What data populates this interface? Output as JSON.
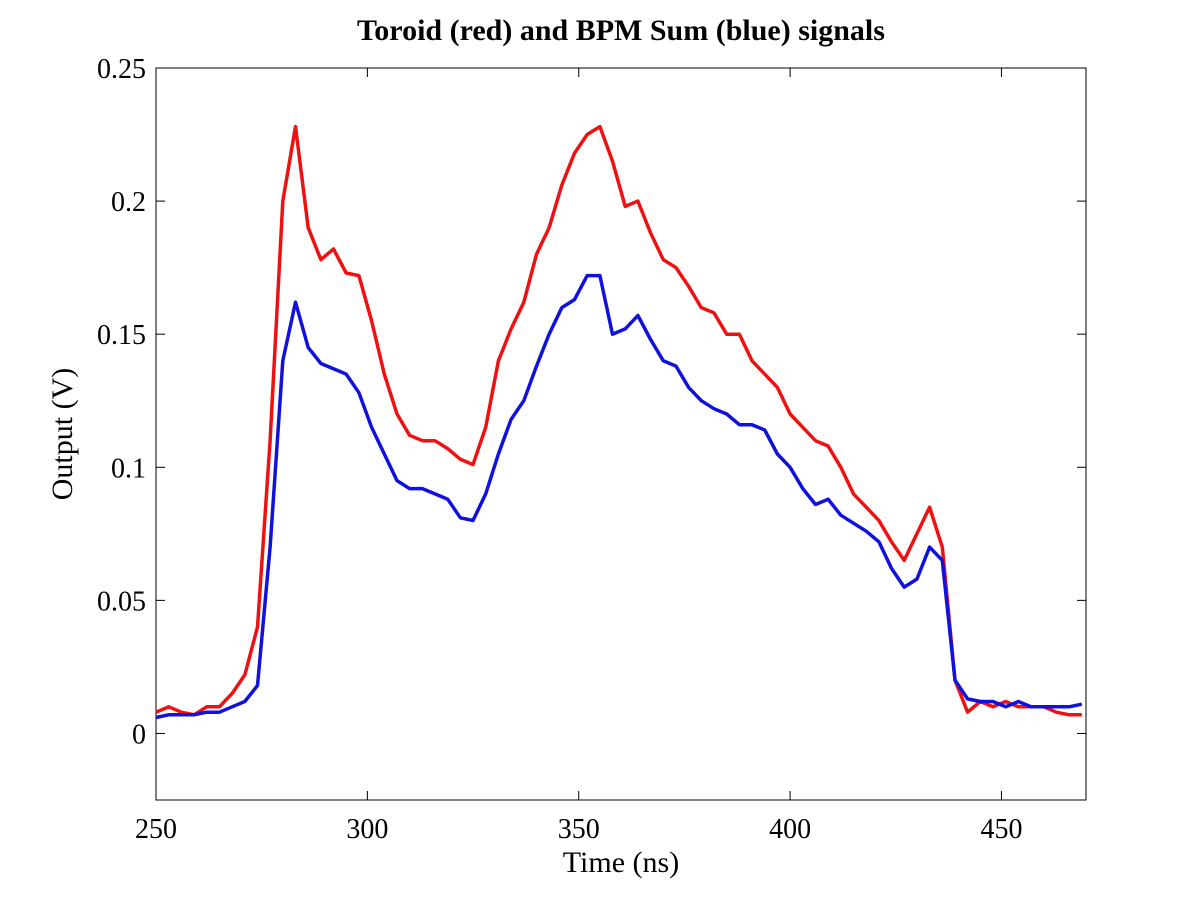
{
  "chart_data": {
    "type": "line",
    "title": "Toroid (red) and BPM Sum (blue) signals",
    "x_label": "Time (ns)",
    "y_label": "Output (V)",
    "x": [
      250,
      253,
      256,
      259,
      262,
      265,
      268,
      271,
      274,
      277,
      280,
      283,
      286,
      289,
      292,
      295,
      298,
      301,
      304,
      307,
      310,
      313,
      316,
      319,
      322,
      325,
      328,
      331,
      334,
      337,
      340,
      343,
      346,
      349,
      352,
      355,
      358,
      361,
      364,
      367,
      370,
      373,
      376,
      379,
      382,
      385,
      388,
      391,
      394,
      397,
      400,
      403,
      406,
      409,
      412,
      415,
      418,
      421,
      424,
      427,
      430,
      433,
      436,
      439,
      442,
      445,
      448,
      451,
      454,
      457,
      460,
      463,
      466,
      469
    ],
    "series": [
      {
        "color": "#ee1111",
        "values": [
          0.008,
          0.01,
          0.008,
          0.007,
          0.01,
          0.01,
          0.015,
          0.022,
          0.04,
          0.11,
          0.2,
          0.228,
          0.19,
          0.178,
          0.182,
          0.173,
          0.172,
          0.155,
          0.135,
          0.12,
          0.112,
          0.11,
          0.11,
          0.107,
          0.103,
          0.101,
          0.115,
          0.14,
          0.152,
          0.162,
          0.18,
          0.19,
          0.206,
          0.218,
          0.225,
          0.228,
          0.215,
          0.198,
          0.2,
          0.188,
          0.178,
          0.175,
          0.168,
          0.16,
          0.158,
          0.15,
          0.15,
          0.14,
          0.135,
          0.13,
          0.12,
          0.115,
          0.11,
          0.108,
          0.1,
          0.09,
          0.085,
          0.08,
          0.072,
          0.065,
          0.075,
          0.085,
          0.07,
          0.02,
          0.008,
          0.012,
          0.01,
          0.012,
          0.01,
          0.01,
          0.01,
          0.008,
          0.007,
          0.007
        ]
      },
      {
        "color": "#1111dd",
        "values": [
          0.006,
          0.007,
          0.007,
          0.007,
          0.008,
          0.008,
          0.01,
          0.012,
          0.018,
          0.07,
          0.14,
          0.162,
          0.145,
          0.139,
          0.137,
          0.135,
          0.128,
          0.115,
          0.105,
          0.095,
          0.092,
          0.092,
          0.09,
          0.088,
          0.081,
          0.08,
          0.09,
          0.105,
          0.118,
          0.125,
          0.138,
          0.15,
          0.16,
          0.163,
          0.172,
          0.172,
          0.15,
          0.152,
          0.157,
          0.148,
          0.14,
          0.138,
          0.13,
          0.125,
          0.122,
          0.12,
          0.116,
          0.116,
          0.114,
          0.105,
          0.1,
          0.092,
          0.086,
          0.088,
          0.082,
          0.079,
          0.076,
          0.072,
          0.062,
          0.055,
          0.058,
          0.07,
          0.065,
          0.02,
          0.013,
          0.012,
          0.012,
          0.01,
          0.012,
          0.01,
          0.01,
          0.01,
          0.01,
          0.011
        ]
      }
    ],
    "xlim": [
      250,
      470
    ],
    "ylim": [
      -0.025,
      0.25
    ],
    "xticks": [
      250,
      300,
      350,
      400,
      450
    ],
    "yticks": [
      0,
      0.05,
      0.1,
      0.15,
      0.2,
      0.25
    ]
  }
}
